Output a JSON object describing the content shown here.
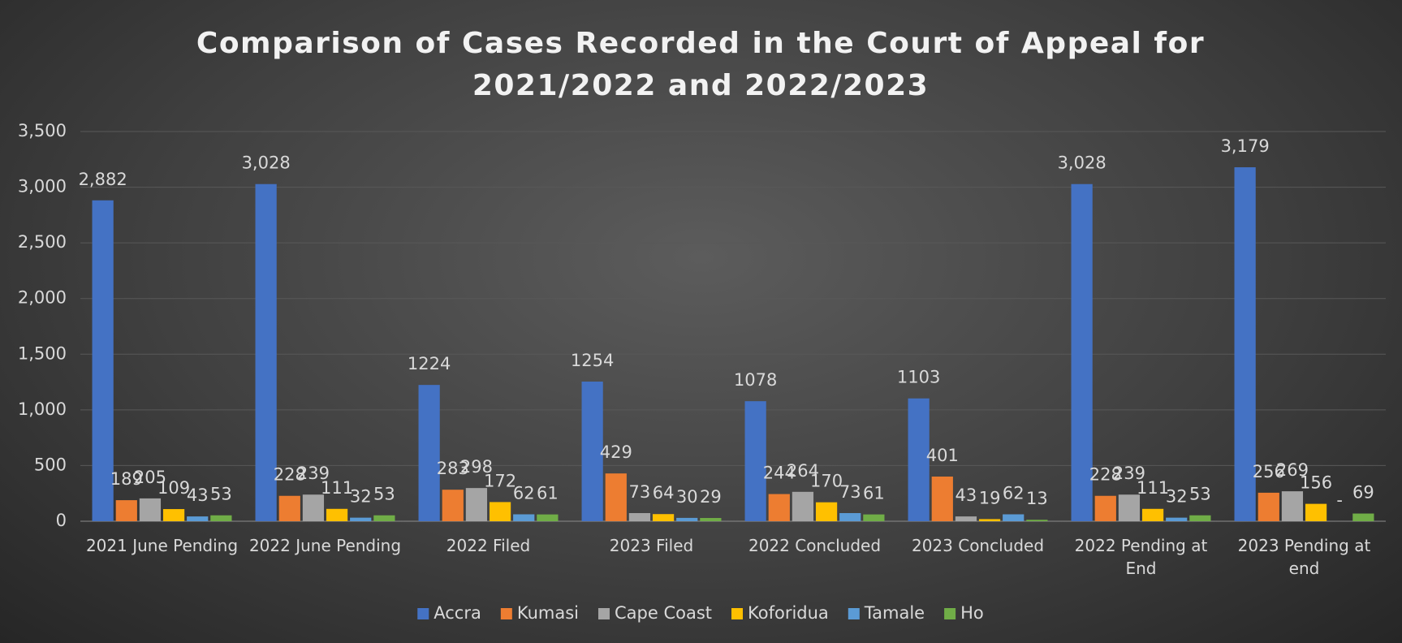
{
  "chart_data": {
    "type": "bar",
    "title": "Comparison of Cases Recorded in the Court of Appeal for 2021/2022 and 2022/2023",
    "categories": [
      "2021 June Pending",
      "2022 June Pending",
      "2022 Filed",
      "2023 Filed",
      "2022 Concluded",
      "2023 Concluded",
      "2022 Pending at End",
      "2023 Pending at end"
    ],
    "series": [
      {
        "name": "Accra",
        "color": "#4472c4",
        "values": [
          2882,
          3028,
          1224,
          1254,
          1078,
          1103,
          3028,
          3179
        ],
        "value_labels": [
          "2,882",
          "3,028",
          "1224",
          "1254",
          "1078",
          "1103",
          "3,028",
          "3,179"
        ]
      },
      {
        "name": "Kumasi",
        "color": "#ed7d31",
        "values": [
          189,
          228,
          283,
          429,
          244,
          401,
          228,
          256
        ]
      },
      {
        "name": "Cape Coast",
        "color": "#a5a5a5",
        "values": [
          205,
          239,
          298,
          73,
          264,
          43,
          239,
          269
        ]
      },
      {
        "name": "Koforidua",
        "color": "#ffc000",
        "values": [
          109,
          111,
          172,
          64,
          170,
          19,
          111,
          156
        ]
      },
      {
        "name": "Tamale",
        "color": "#5b9bd5",
        "values": [
          43,
          32,
          62,
          30,
          73,
          62,
          32,
          0
        ],
        "value_labels": [
          "43",
          "32",
          "62",
          "30",
          "73",
          "62",
          "32",
          "-"
        ]
      },
      {
        "name": "Ho",
        "color": "#70ad47",
        "values": [
          53,
          53,
          61,
          29,
          61,
          13,
          53,
          69
        ]
      }
    ],
    "ylim": [
      0,
      3500
    ],
    "yticks": [
      0,
      500,
      {
        "value": 1000,
        "label": "1,000"
      },
      {
        "value": 1500,
        "label": "1,500"
      },
      {
        "value": 2000,
        "label": "2,000"
      },
      {
        "value": 2500,
        "label": "2,500"
      },
      {
        "value": 3000,
        "label": "3,000"
      },
      {
        "value": 3500,
        "label": "3,500"
      }
    ],
    "grid": true,
    "legend": "bottom"
  }
}
